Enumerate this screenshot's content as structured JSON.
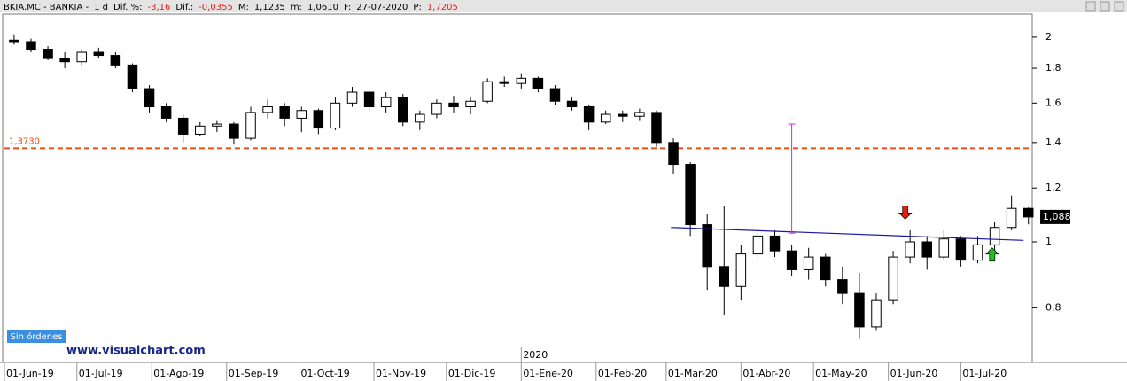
{
  "header": {
    "symbol": "BKIA.MC - BANKIA -",
    "period": "1 d",
    "fields": [
      {
        "label": "Dif. %:",
        "value": "-3,16",
        "color": "#e02020"
      },
      {
        "label": "Dif.:",
        "value": "-0,0355",
        "color": "#e02020"
      },
      {
        "label": "M:",
        "value": "1,1235",
        "color": "#000000"
      },
      {
        "label": "m:",
        "value": "1,0610",
        "color": "#000000"
      },
      {
        "label": "F:",
        "value": "27-07-2020",
        "color": "#000000"
      },
      {
        "label": "P:",
        "value": "1,7205",
        "color": "#e02020"
      }
    ]
  },
  "ui": {
    "orders_button": "Sin órdenes",
    "watermark": "www.visualchart.com"
  },
  "chart_data": {
    "type": "candlestick",
    "log_scale": true,
    "up_color": "#ffffff",
    "down_color": "#000000",
    "x": [
      "2019-06-03",
      "2019-06-10",
      "2019-06-17",
      "2019-06-24",
      "2019-07-01",
      "2019-07-08",
      "2019-07-15",
      "2019-07-22",
      "2019-07-29",
      "2019-08-05",
      "2019-08-12",
      "2019-08-19",
      "2019-08-26",
      "2019-09-02",
      "2019-09-09",
      "2019-09-16",
      "2019-09-23",
      "2019-09-30",
      "2019-10-07",
      "2019-10-14",
      "2019-10-21",
      "2019-10-28",
      "2019-11-04",
      "2019-11-11",
      "2019-11-18",
      "2019-11-25",
      "2019-12-02",
      "2019-12-09",
      "2019-12-16",
      "2019-12-23",
      "2019-12-30",
      "2020-01-06",
      "2020-01-13",
      "2020-01-20",
      "2020-01-27",
      "2020-02-03",
      "2020-02-10",
      "2020-02-17",
      "2020-02-24",
      "2020-03-02",
      "2020-03-09",
      "2020-03-16",
      "2020-03-23",
      "2020-03-30",
      "2020-04-06",
      "2020-04-13",
      "2020-04-20",
      "2020-04-27",
      "2020-05-04",
      "2020-05-11",
      "2020-05-18",
      "2020-05-25",
      "2020-06-01",
      "2020-06-08",
      "2020-06-15",
      "2020-06-22",
      "2020-06-29",
      "2020-07-06",
      "2020-07-13",
      "2020-07-20",
      "2020-07-27"
    ],
    "open": [
      1.98,
      1.97,
      1.92,
      1.86,
      1.84,
      1.9,
      1.88,
      1.82,
      1.68,
      1.58,
      1.52,
      1.44,
      1.48,
      1.49,
      1.42,
      1.55,
      1.58,
      1.52,
      1.56,
      1.47,
      1.6,
      1.66,
      1.58,
      1.63,
      1.5,
      1.54,
      1.6,
      1.58,
      1.61,
      1.72,
      1.71,
      1.74,
      1.68,
      1.61,
      1.58,
      1.5,
      1.54,
      1.53,
      1.55,
      1.4,
      1.3,
      1.06,
      0.92,
      0.86,
      0.96,
      1.02,
      0.97,
      0.91,
      0.95,
      0.88,
      0.84,
      0.75,
      0.82,
      0.95,
      1.0,
      0.95,
      1.01,
      0.94,
      0.99,
      1.05,
      1.12
    ],
    "high": [
      2.02,
      1.99,
      1.94,
      1.9,
      1.92,
      1.93,
      1.9,
      1.83,
      1.7,
      1.6,
      1.54,
      1.5,
      1.51,
      1.5,
      1.58,
      1.62,
      1.6,
      1.58,
      1.57,
      1.63,
      1.69,
      1.67,
      1.66,
      1.65,
      1.56,
      1.62,
      1.64,
      1.63,
      1.74,
      1.75,
      1.77,
      1.75,
      1.7,
      1.63,
      1.59,
      1.56,
      1.56,
      1.57,
      1.56,
      1.42,
      1.31,
      1.1,
      1.13,
      0.99,
      1.05,
      1.04,
      0.99,
      0.98,
      0.96,
      0.92,
      0.9,
      0.84,
      0.97,
      1.04,
      1.02,
      1.04,
      1.02,
      1.02,
      1.07,
      1.17,
      1.1235
    ],
    "low": [
      1.95,
      1.9,
      1.85,
      1.8,
      1.82,
      1.86,
      1.8,
      1.66,
      1.55,
      1.5,
      1.4,
      1.43,
      1.45,
      1.39,
      1.41,
      1.52,
      1.48,
      1.45,
      1.44,
      1.46,
      1.58,
      1.56,
      1.55,
      1.48,
      1.46,
      1.52,
      1.55,
      1.54,
      1.6,
      1.69,
      1.68,
      1.66,
      1.59,
      1.56,
      1.46,
      1.49,
      1.5,
      1.51,
      1.38,
      1.26,
      1.02,
      0.85,
      0.78,
      0.82,
      0.94,
      0.95,
      0.89,
      0.88,
      0.86,
      0.81,
      0.72,
      0.74,
      0.81,
      0.93,
      0.91,
      0.94,
      0.92,
      0.93,
      0.97,
      1.04,
      1.061
    ],
    "close": [
      1.97,
      1.92,
      1.86,
      1.84,
      1.9,
      1.88,
      1.82,
      1.68,
      1.58,
      1.52,
      1.44,
      1.48,
      1.49,
      1.42,
      1.55,
      1.58,
      1.52,
      1.56,
      1.47,
      1.6,
      1.66,
      1.58,
      1.63,
      1.5,
      1.54,
      1.6,
      1.58,
      1.61,
      1.72,
      1.71,
      1.74,
      1.68,
      1.61,
      1.58,
      1.5,
      1.54,
      1.53,
      1.55,
      1.4,
      1.3,
      1.06,
      0.92,
      0.86,
      0.96,
      1.02,
      0.97,
      0.91,
      0.95,
      0.88,
      0.84,
      0.75,
      0.82,
      0.95,
      1.0,
      0.95,
      1.01,
      0.94,
      0.99,
      1.05,
      1.12,
      1.088
    ],
    "xlim": [
      "2019-06-01",
      "2020-07-28"
    ],
    "xticks": [
      {
        "value": "2019-06-01",
        "label": "01-Jun-19"
      },
      {
        "value": "2019-07-01",
        "label": "01-Jul-19"
      },
      {
        "value": "2019-08-01",
        "label": "01-Ago-19"
      },
      {
        "value": "2019-09-01",
        "label": "01-Sep-19"
      },
      {
        "value": "2019-10-01",
        "label": "01-Oct-19"
      },
      {
        "value": "2019-11-01",
        "label": "01-Nov-19"
      },
      {
        "value": "2019-12-01",
        "label": "01-Dic-19"
      },
      {
        "value": "2020-01-01",
        "label": "01-Ene-20"
      },
      {
        "value": "2020-02-01",
        "label": "01-Feb-20"
      },
      {
        "value": "2020-03-01",
        "label": "01-Mar-20"
      },
      {
        "value": "2020-04-01",
        "label": "01-Abr-20"
      },
      {
        "value": "2020-05-01",
        "label": "01-May-20"
      },
      {
        "value": "2020-06-01",
        "label": "01-Jun-20"
      },
      {
        "value": "2020-07-01",
        "label": "01-Jul-20"
      }
    ],
    "year_marker": {
      "value": "2020-01-01",
      "label": "2020"
    },
    "ylim": [
      0.667,
      2.136
    ],
    "yticks": [
      {
        "value": 0.8,
        "label": "0,8"
      },
      1,
      {
        "value": 1.2,
        "label": "1,2"
      },
      {
        "value": 1.4,
        "label": "1,4"
      },
      {
        "value": 1.6,
        "label": "1,6"
      },
      {
        "value": 1.8,
        "label": "1,8"
      },
      2
    ],
    "level": {
      "value": 1.373,
      "label": "1,3730",
      "color": "#e8501a"
    },
    "last_price": {
      "value": 1.088,
      "label": "1,088"
    },
    "trendline": {
      "x": [
        "2020-03-03",
        "2020-07-27"
      ],
      "y": [
        1.05,
        1.005
      ],
      "color": "#1a1aa0"
    },
    "measure": {
      "x": "2020-04-22",
      "y": [
        1.03,
        1.49
      ],
      "color": "#e020e0"
    },
    "signals": [
      {
        "x": "2020-06-08",
        "y": 1.08,
        "direction": "down",
        "color": "#e02010"
      },
      {
        "x": "2020-07-14",
        "y": 0.98,
        "direction": "up",
        "color": "#20c020"
      }
    ]
  }
}
